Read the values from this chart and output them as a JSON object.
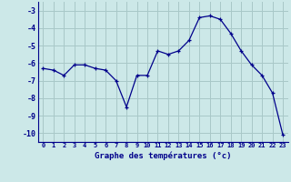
{
  "x": [
    0,
    1,
    2,
    3,
    4,
    5,
    6,
    7,
    8,
    9,
    10,
    11,
    12,
    13,
    14,
    15,
    16,
    17,
    18,
    19,
    20,
    21,
    22,
    23
  ],
  "y": [
    -6.3,
    -6.4,
    -6.7,
    -6.1,
    -6.1,
    -6.3,
    -6.4,
    -7.0,
    -8.5,
    -6.7,
    -6.7,
    -5.3,
    -5.5,
    -5.3,
    -4.7,
    -3.4,
    -3.3,
    -3.5,
    -4.3,
    -5.3,
    -6.1,
    -6.7,
    -7.7,
    -10.1
  ],
  "ylim": [
    -10.5,
    -2.5
  ],
  "yticks": [
    -3,
    -4,
    -5,
    -6,
    -7,
    -8,
    -9,
    -10
  ],
  "xlabel": "Graphe des températures (°c)",
  "bg_color": "#cce8e8",
  "line_color": "#00008b",
  "grid_color": "#a8c8c8",
  "label_color": "#00008b"
}
